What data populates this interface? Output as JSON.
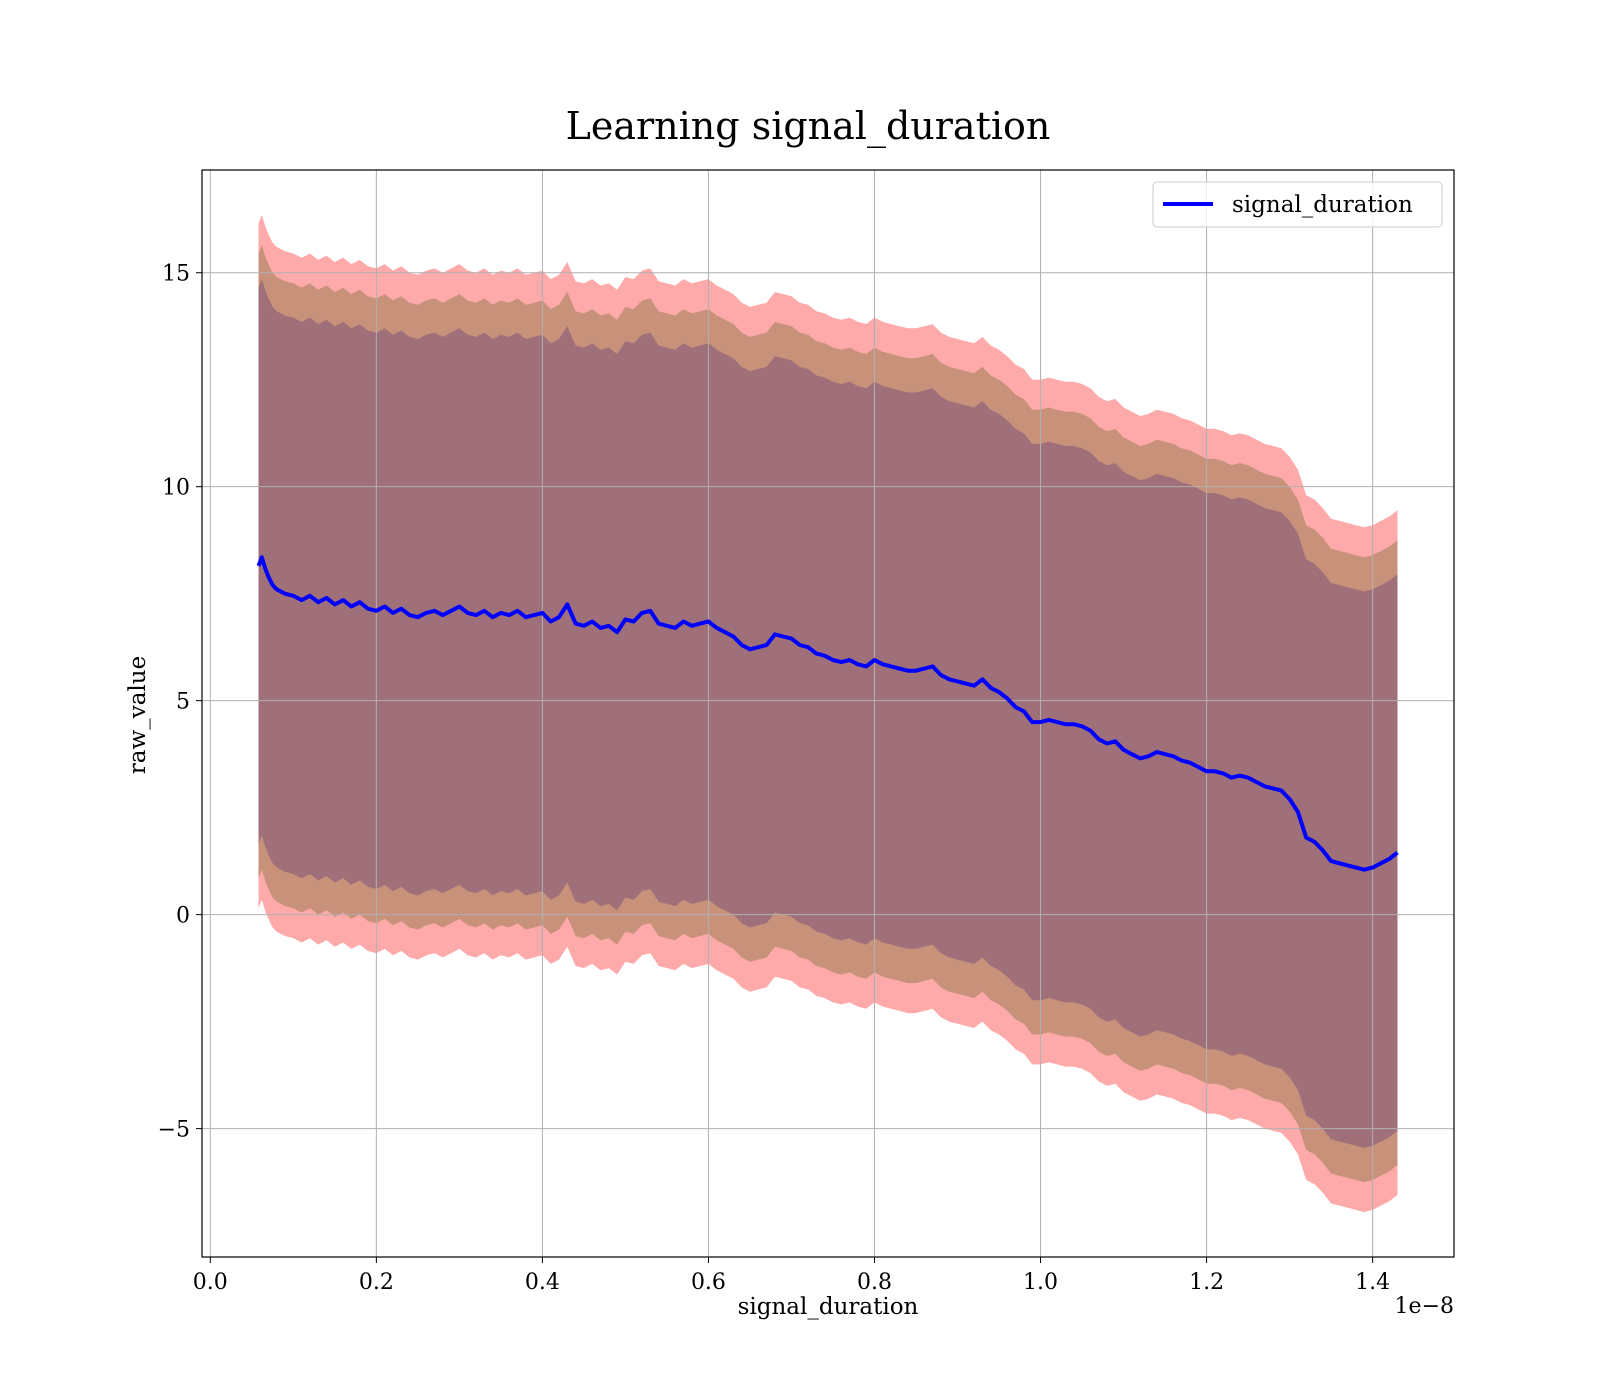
{
  "chart_data": {
    "type": "line",
    "title": "Learning signal_duration",
    "xlabel": "signal_duration",
    "ylabel": "raw_value",
    "x_offset_label": "1e−8",
    "xlim": [
      -0.01,
      1.498
    ],
    "ylim": [
      -8.0,
      17.4
    ],
    "xticks": [
      0.0,
      0.2,
      0.4,
      0.6,
      0.8,
      1.0,
      1.2,
      1.4
    ],
    "xtick_labels": [
      "0.0",
      "0.2",
      "0.4",
      "0.6",
      "0.8",
      "1.0",
      "1.2",
      "1.4"
    ],
    "yticks": [
      -5,
      0,
      5,
      10,
      15
    ],
    "ytick_labels": [
      "−5",
      "0",
      "5",
      "10",
      "15"
    ],
    "grid": true,
    "legend": {
      "position": "top-right",
      "entries": [
        "signal_duration"
      ]
    },
    "colors": {
      "line": "#0000ff",
      "band_outer": "#ffaaaa",
      "band_middle": "#c8917a",
      "band_inner": "#a0707a"
    },
    "series": [
      {
        "name": "signal_duration",
        "x": [
          0.058,
          0.062,
          0.066,
          0.07,
          0.075,
          0.08,
          0.09,
          0.1,
          0.11,
          0.12,
          0.13,
          0.14,
          0.15,
          0.16,
          0.17,
          0.18,
          0.19,
          0.2,
          0.21,
          0.22,
          0.23,
          0.24,
          0.25,
          0.26,
          0.27,
          0.28,
          0.29,
          0.3,
          0.31,
          0.32,
          0.33,
          0.34,
          0.35,
          0.36,
          0.37,
          0.38,
          0.39,
          0.4,
          0.41,
          0.42,
          0.43,
          0.44,
          0.45,
          0.46,
          0.47,
          0.48,
          0.49,
          0.5,
          0.51,
          0.52,
          0.53,
          0.54,
          0.55,
          0.56,
          0.57,
          0.58,
          0.59,
          0.6,
          0.61,
          0.62,
          0.63,
          0.64,
          0.65,
          0.66,
          0.67,
          0.68,
          0.69,
          0.7,
          0.71,
          0.72,
          0.73,
          0.74,
          0.75,
          0.76,
          0.77,
          0.78,
          0.79,
          0.8,
          0.81,
          0.82,
          0.83,
          0.84,
          0.85,
          0.86,
          0.87,
          0.88,
          0.89,
          0.9,
          0.91,
          0.92,
          0.93,
          0.94,
          0.95,
          0.96,
          0.97,
          0.98,
          0.99,
          1.0,
          1.01,
          1.02,
          1.03,
          1.04,
          1.05,
          1.06,
          1.07,
          1.08,
          1.09,
          1.1,
          1.11,
          1.12,
          1.13,
          1.14,
          1.15,
          1.16,
          1.17,
          1.18,
          1.19,
          1.2,
          1.21,
          1.22,
          1.23,
          1.24,
          1.25,
          1.26,
          1.27,
          1.28,
          1.29,
          1.3,
          1.31,
          1.32,
          1.33,
          1.34,
          1.35,
          1.36,
          1.37,
          1.38,
          1.39,
          1.4,
          1.41,
          1.42,
          1.43
        ],
        "mean": [
          8.15,
          8.35,
          8.1,
          7.9,
          7.7,
          7.6,
          7.5,
          7.45,
          7.35,
          7.45,
          7.3,
          7.4,
          7.25,
          7.35,
          7.2,
          7.3,
          7.15,
          7.1,
          7.2,
          7.05,
          7.15,
          7.0,
          6.95,
          7.05,
          7.1,
          7.0,
          7.1,
          7.2,
          7.05,
          7.0,
          7.1,
          6.95,
          7.05,
          7.0,
          7.1,
          6.95,
          7.0,
          7.05,
          6.85,
          6.95,
          7.25,
          6.8,
          6.75,
          6.85,
          6.7,
          6.75,
          6.6,
          6.9,
          6.85,
          7.05,
          7.1,
          6.8,
          6.75,
          6.7,
          6.85,
          6.75,
          6.8,
          6.85,
          6.7,
          6.6,
          6.5,
          6.3,
          6.2,
          6.25,
          6.3,
          6.55,
          6.5,
          6.45,
          6.3,
          6.25,
          6.1,
          6.05,
          5.95,
          5.9,
          5.95,
          5.85,
          5.8,
          5.95,
          5.85,
          5.8,
          5.75,
          5.7,
          5.7,
          5.75,
          5.8,
          5.6,
          5.5,
          5.45,
          5.4,
          5.35,
          5.5,
          5.3,
          5.2,
          5.05,
          4.85,
          4.75,
          4.5,
          4.5,
          4.55,
          4.5,
          4.45,
          4.45,
          4.4,
          4.3,
          4.1,
          4.0,
          4.05,
          3.85,
          3.75,
          3.65,
          3.7,
          3.8,
          3.75,
          3.7,
          3.6,
          3.55,
          3.45,
          3.35,
          3.35,
          3.3,
          3.2,
          3.25,
          3.2,
          3.1,
          3.0,
          2.95,
          2.9,
          2.7,
          2.4,
          1.8,
          1.7,
          1.5,
          1.25,
          1.2,
          1.15,
          1.1,
          1.05,
          1.1,
          1.2,
          1.3,
          1.45
        ],
        "band_halfwidths": [
          6.5,
          7.3,
          8.0
        ]
      }
    ]
  }
}
